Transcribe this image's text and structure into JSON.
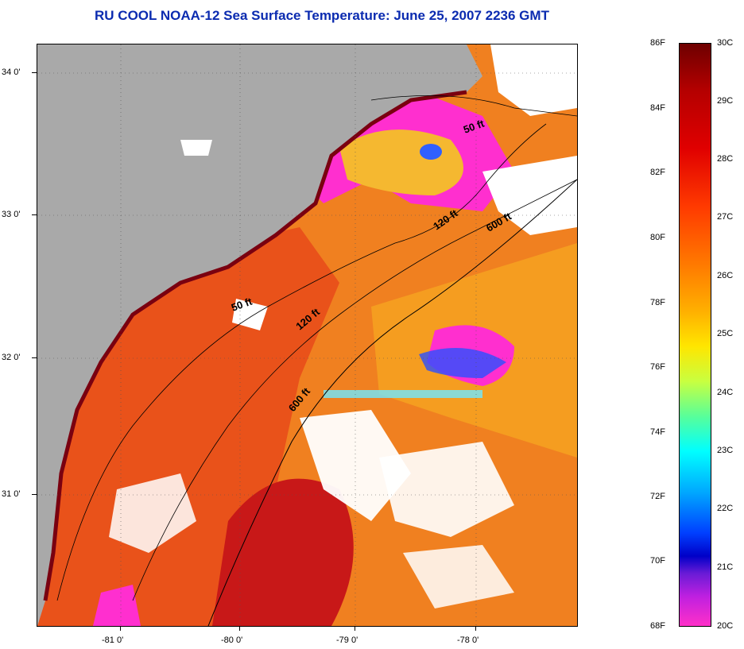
{
  "title": "RU COOL  NOAA-12  Sea Surface Temperature:  June 25, 2007 2236 GMT",
  "lat_labels": [
    "34 0'",
    "33 0'",
    "32 0'",
    "31 0'"
  ],
  "lon_labels": [
    "-81 0'",
    "-80 0'",
    "-79 0'",
    "-78 0'"
  ],
  "isobath_labels": [
    "50 ft",
    "50 ft",
    "120 ft",
    "120 ft",
    "600 ft",
    "600 ft"
  ],
  "colorbar": {
    "fahrenheit": [
      "86F",
      "84F",
      "82F",
      "80F",
      "78F",
      "76F",
      "74F",
      "72F",
      "70F",
      "68F"
    ],
    "celsius": [
      "30C",
      "29C",
      "28C",
      "27C",
      "26C",
      "25C",
      "24C",
      "23C",
      "22C",
      "21C",
      "20C"
    ]
  },
  "colors": {
    "title": "#0b2bb0",
    "land": "#a9a9a9",
    "cloud": "#ffffff",
    "warm_water": "#f07a1c",
    "hot_core": "#c81818",
    "cold_upwelling": "#ff2fcf"
  }
}
